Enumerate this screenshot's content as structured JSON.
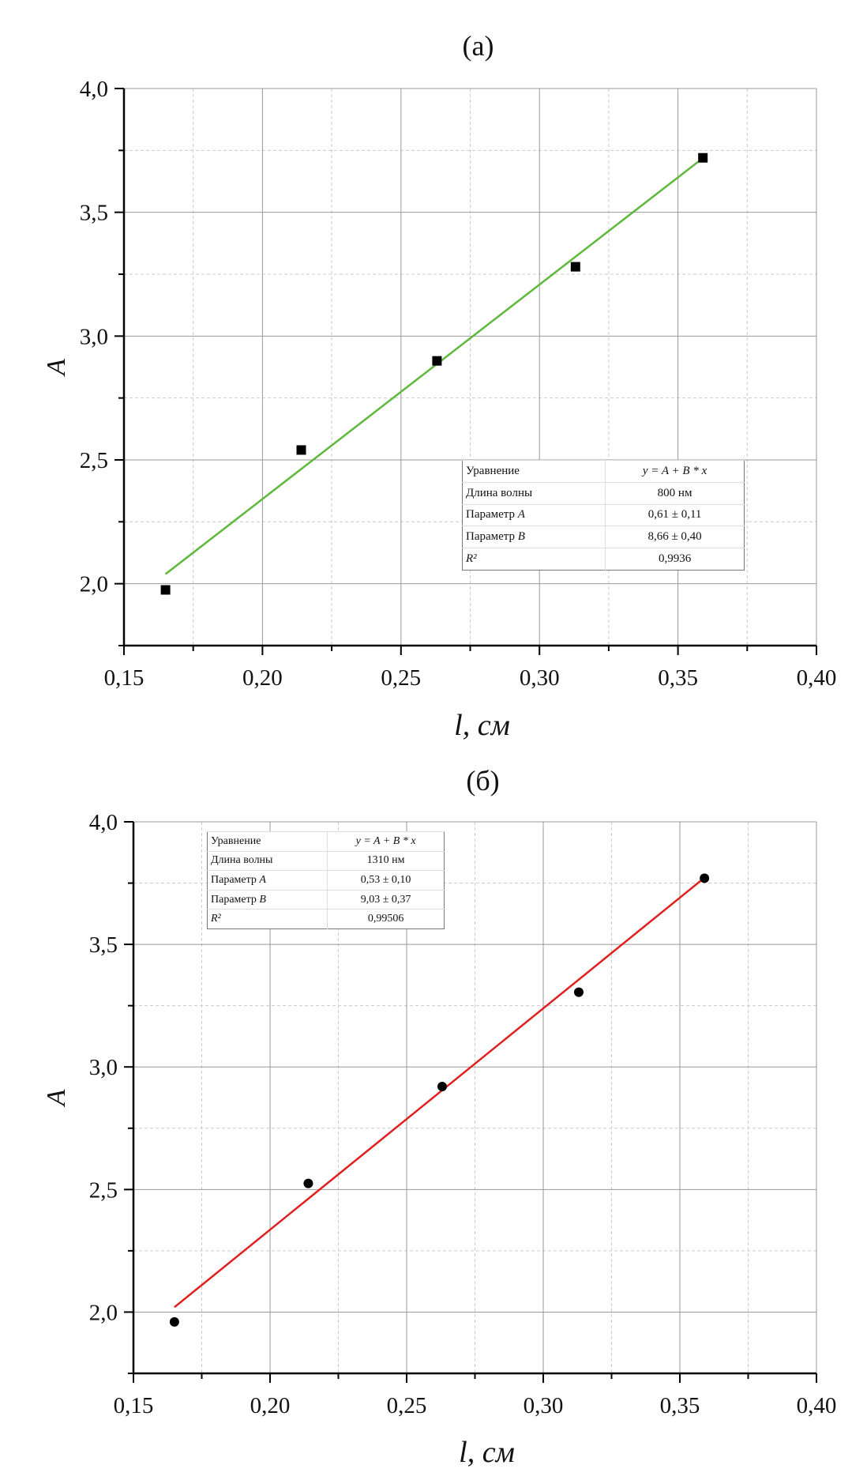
{
  "chart_data": [
    {
      "type": "scatter",
      "title": "(a)",
      "xlabel": "l, см",
      "ylabel": "A",
      "xlim": [
        0.15,
        0.4
      ],
      "ylim": [
        1.75,
        4.0
      ],
      "xticks": [
        "0,15",
        "0,20",
        "0,25",
        "0,30",
        "0,35",
        "0,40"
      ],
      "xtick_values": [
        0.15,
        0.2,
        0.25,
        0.3,
        0.35,
        0.4
      ],
      "yticks": [
        "2,0",
        "2,5",
        "3,0",
        "3,5",
        "4,0"
      ],
      "ytick_values": [
        2.0,
        2.5,
        3.0,
        3.5,
        4.0
      ],
      "grid": true,
      "marker": "square",
      "marker_color": "#000000",
      "line_color": "#5db83a",
      "points": {
        "x": [
          0.165,
          0.214,
          0.263,
          0.313,
          0.359
        ],
        "y": [
          1.975,
          2.54,
          2.9,
          3.28,
          3.72
        ]
      },
      "fit": {
        "intercept": 0.61,
        "slope": 8.66,
        "x_range": [
          0.165,
          0.359
        ]
      },
      "table": {
        "rows": [
          {
            "label": "Уравнение",
            "value": "y = A + B * x"
          },
          {
            "label": "Длина волны",
            "value": "800 нм"
          },
          {
            "label": "Параметр",
            "label_italic": "A",
            "value": "0,61 ± 0,11"
          },
          {
            "label": "Параметр",
            "label_italic": "B",
            "value": "8,66 ± 0,40"
          },
          {
            "label": "R²",
            "value": "0,9936"
          }
        ]
      }
    },
    {
      "type": "scatter",
      "title": "(б)",
      "xlabel": "l, см",
      "ylabel": "A",
      "xlim": [
        0.15,
        0.4
      ],
      "ylim": [
        1.75,
        4.0
      ],
      "xticks": [
        "0,15",
        "0,20",
        "0,25",
        "0,30",
        "0,35",
        "0,40"
      ],
      "xtick_values": [
        0.15,
        0.2,
        0.25,
        0.3,
        0.35,
        0.4
      ],
      "yticks": [
        "2,0",
        "2,5",
        "3,0",
        "3,5",
        "4,0"
      ],
      "ytick_values": [
        2.0,
        2.5,
        3.0,
        3.5,
        4.0
      ],
      "grid": true,
      "marker": "circle",
      "marker_color": "#000000",
      "line_color": "#e02020",
      "points": {
        "x": [
          0.165,
          0.214,
          0.263,
          0.313,
          0.359
        ],
        "y": [
          1.96,
          2.525,
          2.92,
          3.305,
          3.77
        ]
      },
      "fit": {
        "intercept": 0.53,
        "slope": 9.03,
        "x_range": [
          0.165,
          0.359
        ]
      },
      "table": {
        "rows": [
          {
            "label": "Уравнение",
            "value": "y = A + B * x"
          },
          {
            "label": "Длина волны",
            "value": "1310 нм"
          },
          {
            "label": "Параметр",
            "label_italic": "A",
            "value": "0,53 ± 0,10"
          },
          {
            "label": "Параметр",
            "label_italic": "B",
            "value": "9,03 ± 0,37"
          },
          {
            "label": "R²",
            "value": "0,99506"
          }
        ]
      }
    }
  ]
}
